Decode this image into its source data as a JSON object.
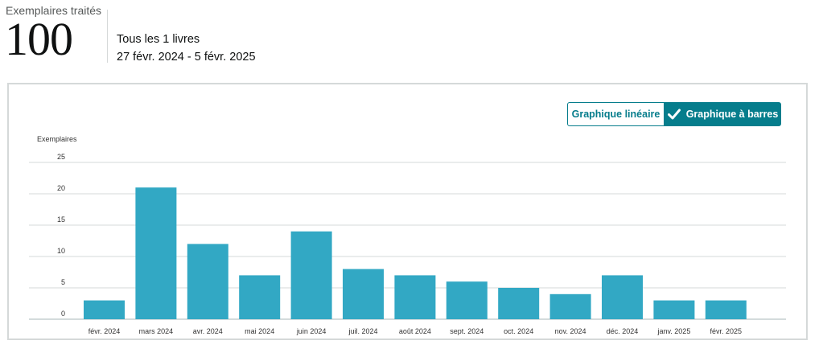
{
  "summary": {
    "label": "Exemplaires traités",
    "value": "100",
    "scope": "Tous les 1 livres",
    "date_range": "27 févr. 2024 - 5 févr. 2025"
  },
  "chart_toggle": {
    "line_label": "Graphique linéaire",
    "bar_label": "Graphique à barres",
    "selected": "bar"
  },
  "colors": {
    "accent": "#067d8c",
    "bar": "#32a8c4",
    "grid": "#d5d9d9"
  },
  "chart_data": {
    "type": "bar",
    "ylabel": "Exemplaires",
    "xlabel": "",
    "ylim": [
      0,
      25
    ],
    "yticks": [
      0,
      5,
      10,
      15,
      20,
      25
    ],
    "grid": true,
    "categories": [
      "févr. 2024",
      "mars 2024",
      "avr. 2024",
      "mai 2024",
      "juin 2024",
      "juil. 2024",
      "août 2024",
      "sept. 2024",
      "oct. 2024",
      "nov. 2024",
      "déc. 2024",
      "janv. 2025",
      "févr. 2025"
    ],
    "values": [
      3,
      21,
      12,
      7,
      14,
      8,
      7,
      6,
      5,
      4,
      7,
      3,
      3
    ]
  }
}
